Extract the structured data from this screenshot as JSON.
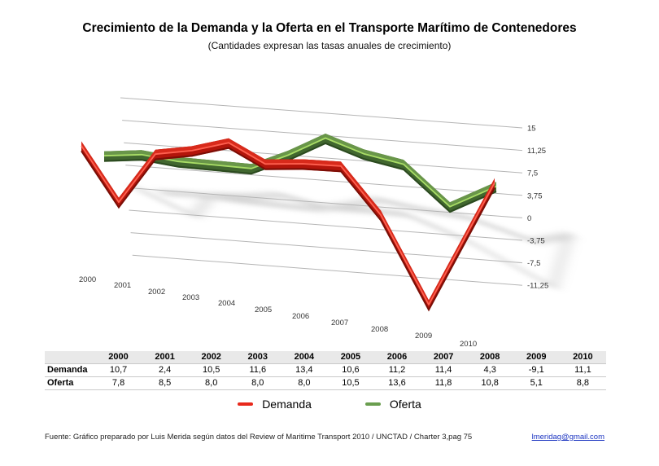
{
  "title": "Crecimiento de la Demanda y la Oferta en el Transporte Marítimo de Contenedores",
  "subtitle": "(Cantidades expresan las tasas anuales de crecimiento)",
  "chart_data": {
    "type": "line",
    "style": "3d-ribbon",
    "categories": [
      "2000",
      "2001",
      "2002",
      "2003",
      "2004",
      "2005",
      "2006",
      "2007",
      "2008",
      "2009",
      "2010"
    ],
    "series": [
      {
        "name": "Demanda",
        "color": "#e8291c",
        "values": [
          10.7,
          2.4,
          10.5,
          11.6,
          13.4,
          10.6,
          11.2,
          11.4,
          4.3,
          -9.1,
          11.1
        ]
      },
      {
        "name": "Oferta",
        "color": "#6a9e4f",
        "values": [
          7.8,
          8.5,
          8.0,
          8.0,
          8.0,
          10.5,
          13.6,
          11.8,
          10.8,
          5.1,
          8.8
        ]
      }
    ],
    "yticks": [
      15,
      11.25,
      7.5,
      3.75,
      0,
      -3.75,
      -7.5,
      -11.25
    ],
    "ytick_labels": [
      "15",
      "11,25",
      "7,5",
      "3,75",
      "0",
      "-3,75",
      "-7,5",
      "-11,25"
    ],
    "ylim": [
      -11.25,
      15
    ],
    "grid": true,
    "legend_position": "bottom",
    "gridline_color": "#b5b5b5",
    "axis_text_color": "#333333"
  },
  "table": {
    "corner": "",
    "columns": [
      "2000",
      "2001",
      "2002",
      "2003",
      "2004",
      "2005",
      "2006",
      "2007",
      "2008",
      "2009",
      "2010"
    ],
    "rows": [
      {
        "label": "Demanda",
        "values": [
          "10,7",
          "2,4",
          "10,5",
          "11,6",
          "13,4",
          "10,6",
          "11,2",
          "11,4",
          "4,3",
          "-9,1",
          "11,1"
        ]
      },
      {
        "label": "Oferta",
        "values": [
          "7,8",
          "8,5",
          "8,0",
          "8,0",
          "8,0",
          "10,5",
          "13,6",
          "11,8",
          "10,8",
          "5,1",
          "8,8"
        ]
      }
    ]
  },
  "footer": {
    "source": "Fuente: Gráfico preparado por Luis Merida según datos del Review of Maritime Transport 2010 / UNCTAD / Charter 3,pag 75",
    "email": "lmeridag@gmail.com"
  }
}
